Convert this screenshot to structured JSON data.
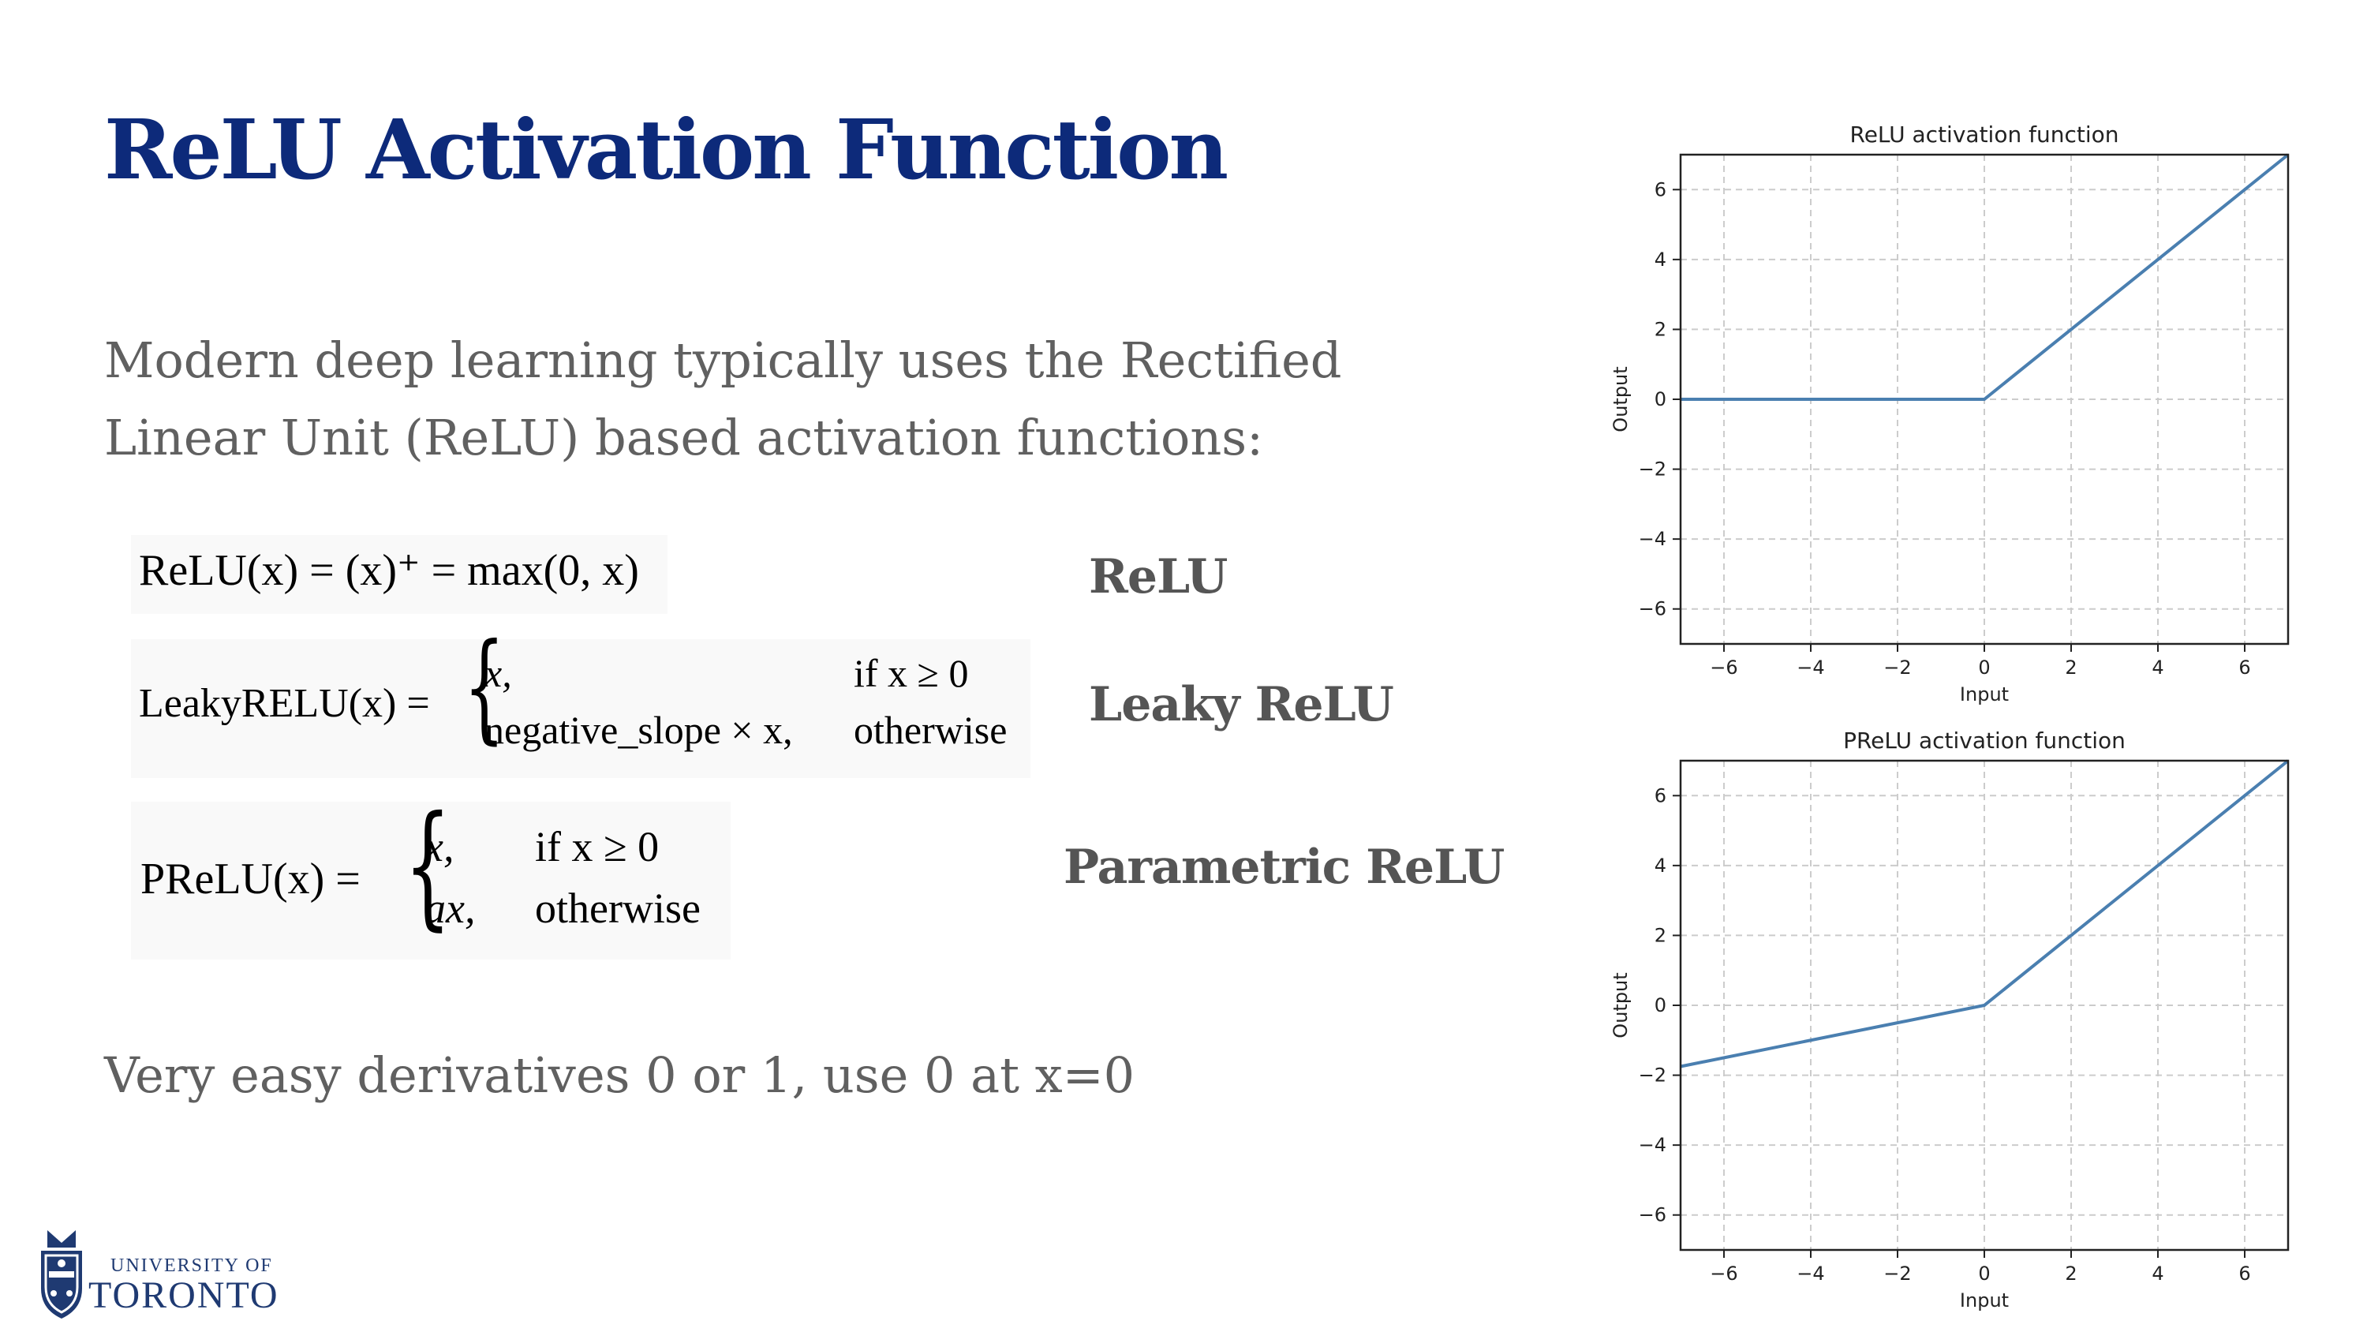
{
  "slide": {
    "title": "ReLU Activation Function",
    "intro": "Modern deep learning typically uses the Rectified Linear Unit (ReLU) based activation functions:",
    "footnote": "Very easy derivatives 0 or 1, use 0 at x=0"
  },
  "equations": {
    "relu": {
      "formula": "ReLU(x) = (x)⁺ = max(0, x)",
      "tag": "ReLU"
    },
    "leaky": {
      "lhs": "LeakyRELU(x) =",
      "case1_value": "x,",
      "case1_cond": "if x ≥ 0",
      "case2_value": "negative_slope × x,",
      "case2_cond": "otherwise",
      "tag": "Leaky ReLU"
    },
    "prelu": {
      "lhs": "PReLU(x) =",
      "case1_value": "x,",
      "case1_cond": "if x ≥ 0",
      "case2_value": "ax,",
      "case2_cond": "otherwise",
      "tag": "Parametric  ReLU"
    }
  },
  "logo": {
    "line1": "UNIVERSITY OF",
    "line2": "TORONTO"
  },
  "chart_data": [
    {
      "type": "line",
      "title": "ReLU activation function",
      "xlabel": "Input",
      "ylabel": "Output",
      "xlim": [
        -7,
        7
      ],
      "ylim": [
        -7,
        7
      ],
      "xticks": [
        -6,
        -4,
        -2,
        0,
        2,
        4,
        6
      ],
      "yticks": [
        -6,
        -4,
        -2,
        0,
        2,
        4,
        6
      ],
      "xtick_labels": [
        "−6",
        "−4",
        "−2",
        "0",
        "2",
        "4",
        "6"
      ],
      "ytick_labels": [
        "−6",
        "−4",
        "−2",
        "0",
        "2",
        "4",
        "6"
      ],
      "grid": true,
      "line_color": "#4a7fb0",
      "series": [
        {
          "x": [
            -7,
            0,
            7
          ],
          "y": [
            0,
            0,
            7
          ]
        }
      ]
    },
    {
      "type": "line",
      "title": "PReLU activation function",
      "xlabel": "Input",
      "ylabel": "Output",
      "xlim": [
        -7,
        7
      ],
      "ylim": [
        -7,
        7
      ],
      "xticks": [
        -6,
        -4,
        -2,
        0,
        2,
        4,
        6
      ],
      "yticks": [
        -6,
        -4,
        -2,
        0,
        2,
        4,
        6
      ],
      "xtick_labels": [
        "−6",
        "−4",
        "−2",
        "0",
        "2",
        "4",
        "6"
      ],
      "ytick_labels": [
        "−6",
        "−4",
        "−2",
        "0",
        "2",
        "4",
        "6"
      ],
      "grid": true,
      "line_color": "#4a7fb0",
      "series": [
        {
          "x": [
            -7,
            0,
            7
          ],
          "y": [
            -1.75,
            0,
            7
          ]
        }
      ]
    }
  ]
}
